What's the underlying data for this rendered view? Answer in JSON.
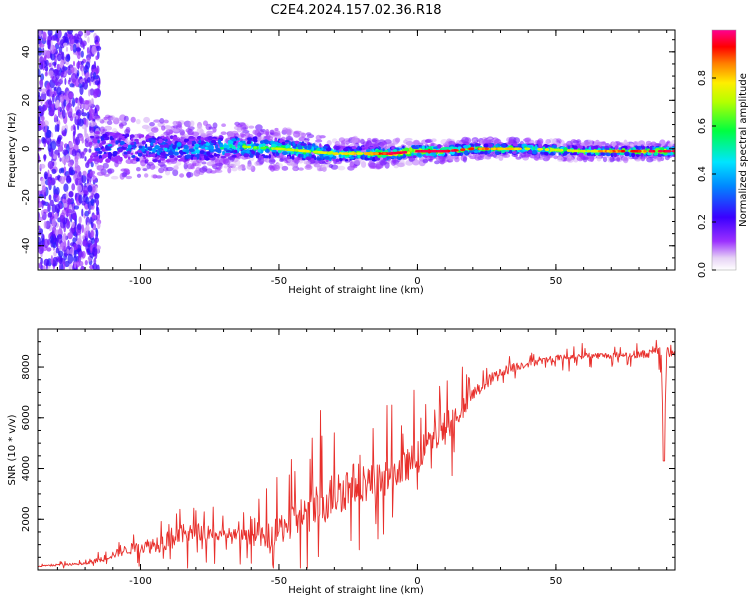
{
  "title": "C2E4.2024.157.02.36.R18",
  "colors": {
    "snr_line": "#e8302c",
    "background": "#ffffff",
    "axis": "#000000"
  },
  "colorbar": {
    "label": "Normalized spectral amplitude",
    "ticks": [
      "0.0",
      "0.2",
      "0.4",
      "0.6",
      "0.8"
    ],
    "range": [
      0,
      1
    ],
    "colormap": "rainbow (white → purple → blue → cyan → green → yellow → red → magenta)"
  },
  "chart_data": [
    {
      "type": "heatmap",
      "title": "C2E4.2024.157.02.36.R18",
      "xlabel": "Height of straight line (km)",
      "ylabel": "Frequency (Hz)",
      "xlim": [
        -137,
        93
      ],
      "ylim": [
        -50,
        49
      ],
      "xticks": [
        "-100",
        "-50",
        "0",
        "50"
      ],
      "yticks": [
        "-40",
        "-20",
        "0",
        "20",
        "40"
      ],
      "grid": false,
      "ridge": {
        "description": "High-amplitude spectral ridge near 0 Hz narrowing with height",
        "x": [
          -118,
          -100,
          -80,
          -65,
          -50,
          -40,
          -30,
          -20,
          -10,
          0,
          10,
          20,
          40,
          60,
          80,
          92
        ],
        "center_hz": [
          1,
          0,
          0,
          1,
          0,
          -1,
          -2,
          -2,
          -2,
          -1,
          -1,
          0,
          0,
          -1,
          -1,
          -1
        ],
        "amplitude": [
          0.25,
          0.3,
          0.4,
          0.5,
          0.55,
          0.6,
          0.6,
          0.65,
          0.8,
          0.85,
          0.8,
          0.75,
          0.6,
          0.6,
          0.8,
          0.85
        ]
      },
      "noise_region_x": [
        -137,
        -115
      ]
    },
    {
      "type": "line",
      "xlabel": "Height of straight line (km)",
      "ylabel": "SNR (10 * v/v)",
      "xlim": [
        -137,
        93
      ],
      "ylim": [
        0,
        9500
      ],
      "xticks": [
        "-100",
        "-50",
        "0",
        "50"
      ],
      "yticks": [
        "2000",
        "4000",
        "6000",
        "8000"
      ],
      "grid": false,
      "series": [
        {
          "x": [
            -137,
            -130,
            -120,
            -115,
            -110,
            -105,
            -100,
            -95,
            -90,
            -85,
            -80,
            -75,
            -70,
            -65,
            -60,
            -55,
            -50,
            -45,
            -40,
            -35,
            -30,
            -25,
            -20,
            -15,
            -10,
            -5,
            0,
            5,
            10,
            15,
            20,
            25,
            30,
            35,
            40,
            45,
            50,
            55,
            60,
            65,
            70,
            75,
            80,
            85,
            88,
            89,
            90,
            91,
            93
          ],
          "values": [
            150,
            200,
            250,
            400,
            600,
            800,
            900,
            1000,
            1200,
            1400,
            1500,
            1500,
            1400,
            1300,
            1300,
            1250,
            1600,
            2000,
            2200,
            2600,
            3000,
            3300,
            3500,
            3400,
            3700,
            4000,
            4500,
            5100,
            5600,
            6200,
            6900,
            7400,
            7800,
            8000,
            8150,
            8250,
            8350,
            8400,
            8450,
            8450,
            8450,
            8500,
            8500,
            8550,
            8600,
            4300,
            8700,
            8500,
            8600
          ],
          "noise_amplitude": [
            50,
            80,
            100,
            200,
            300,
            400,
            500,
            700,
            900,
            800,
            700,
            700,
            600,
            600,
            600,
            900,
            1200,
            1500,
            1600,
            1800,
            1800,
            1800,
            1600,
            1500,
            1300,
            1300,
            1200,
            1200,
            1300,
            900,
            600,
            500,
            400,
            350,
            300,
            250,
            250,
            250,
            250,
            250,
            250,
            250,
            300,
            350,
            400,
            0,
            400,
            300,
            300
          ]
        }
      ]
    }
  ]
}
